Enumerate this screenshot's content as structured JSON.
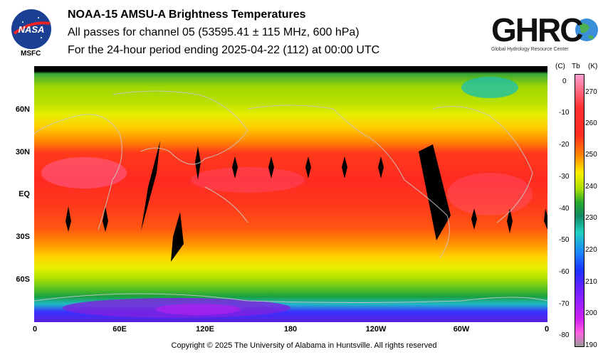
{
  "header": {
    "title": "NOAA-15 AMSU-A Brightness Temperatures",
    "subtitle1": "All passes for channel 05 (53595.41 ± 115 MHz, 600 hPa)",
    "subtitle2": "For the 24-hour period ending 2025-04-22 (112) at 00:00 UTC"
  },
  "logos": {
    "left_name": "NASA",
    "left_caption": "MSFC",
    "right_name": "GHRC",
    "right_caption": "Global Hydrology Resource Center"
  },
  "map": {
    "lat_labels": [
      "60N",
      "30N",
      "EQ",
      "30S",
      "60S"
    ],
    "lon_labels": [
      "0",
      "60E",
      "120E",
      "180",
      "120W",
      "60W",
      "0"
    ]
  },
  "colorbar": {
    "unit_c": "(C)",
    "unit_tb": "Tb",
    "unit_k": "(K)",
    "c_ticks": [
      "0",
      "-10",
      "-20",
      "-30",
      "-40",
      "-50",
      "-60",
      "-70",
      "-80"
    ],
    "k_ticks": [
      "270",
      "260",
      "250",
      "240",
      "230",
      "220",
      "210",
      "200",
      "190"
    ],
    "colors": [
      "#ff9fd0",
      "#ff2a20",
      "#ff8a00",
      "#ffee00",
      "#a8e000",
      "#28a830",
      "#20d0c0",
      "#1a50ff",
      "#9a20ff",
      "#ff60e0"
    ]
  },
  "footer": {
    "copyright": "Copyright © 2025 The University of Alabama in Huntsville.  All rights reserved"
  }
}
